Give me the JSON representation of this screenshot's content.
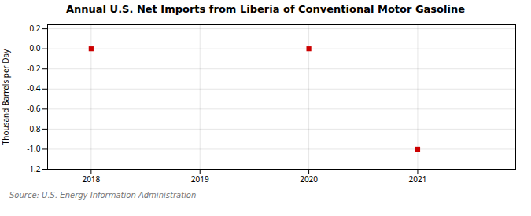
{
  "chart_data": {
    "type": "scatter",
    "title": "Annual U.S. Net Imports from Liberia of Conventional Motor Gasoline",
    "ylabel": "Thousand Barrels per Day",
    "source": "Source: U.S. Energy Information Administration",
    "x": [
      2018,
      2020,
      2021
    ],
    "values": [
      0.0,
      0.0,
      -1.0
    ],
    "color": "#cc0000",
    "marker": "square",
    "xlim": [
      2017.6,
      2021.9
    ],
    "ylim": [
      -1.2,
      0.24
    ],
    "xticks": [
      2018,
      2019,
      2020,
      2021
    ],
    "yticks": [
      0.2,
      {
        "value": 0,
        "label": "0.0"
      },
      -0.2,
      -0.4,
      -0.6,
      -0.8,
      {
        "value": -1,
        "label": "-1.0"
      },
      -1.2
    ],
    "grid": true
  }
}
